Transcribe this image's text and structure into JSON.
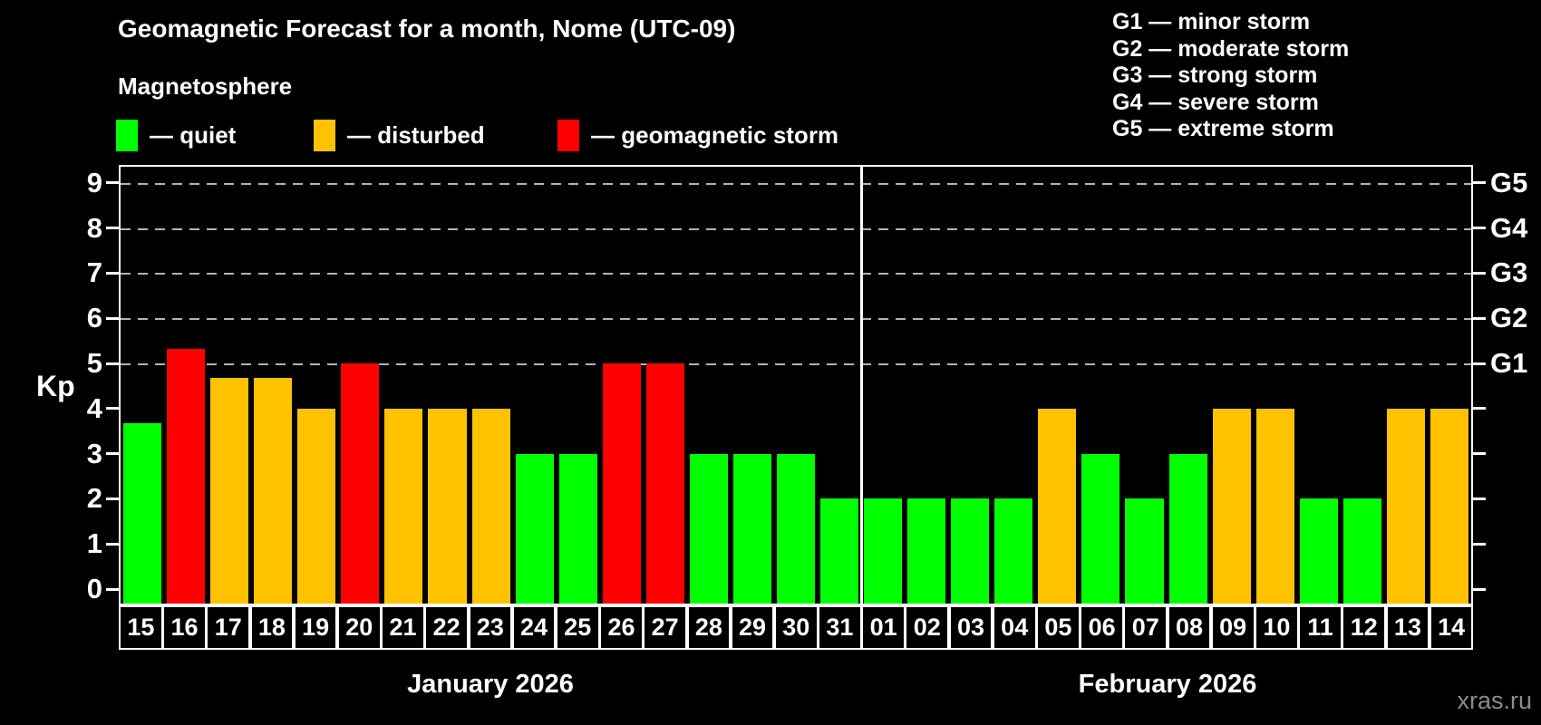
{
  "title": "Geomagnetic Forecast for a month, Nome (UTC-09)",
  "subtitle": "Magnetosphere",
  "legend": {
    "items": [
      {
        "key": "quiet",
        "label": "— quiet",
        "color": "#00ff00"
      },
      {
        "key": "disturbed",
        "label": "— disturbed",
        "color": "#ffc200"
      },
      {
        "key": "storm",
        "label": "— geomagnetic storm",
        "color": "#ff0000"
      }
    ]
  },
  "g_legend": [
    "G1 — minor storm",
    "G2 — moderate storm",
    "G3 — strong storm",
    "G4 — severe storm",
    "G5 — extreme storm"
  ],
  "watermark": "xras.ru",
  "chart_data": {
    "type": "bar",
    "ylabel": "Kp",
    "ylim": [
      -0.36,
      9.4
    ],
    "y_ticks": [
      0,
      1,
      2,
      3,
      4,
      5,
      6,
      7,
      8,
      9
    ],
    "grid_on": true,
    "g_levels": [
      {
        "kp": 5,
        "label": "G1"
      },
      {
        "kp": 6,
        "label": "G2"
      },
      {
        "kp": 7,
        "label": "G3"
      },
      {
        "kp": 8,
        "label": "G4"
      },
      {
        "kp": 9,
        "label": "G5"
      }
    ],
    "months": [
      {
        "label": "January 2026",
        "days": [
          {
            "day": "15",
            "kp": 3.67,
            "state": "quiet"
          },
          {
            "day": "16",
            "kp": 5.33,
            "state": "storm"
          },
          {
            "day": "17",
            "kp": 4.67,
            "state": "disturbed"
          },
          {
            "day": "18",
            "kp": 4.67,
            "state": "disturbed"
          },
          {
            "day": "19",
            "kp": 4,
            "state": "disturbed"
          },
          {
            "day": "20",
            "kp": 5,
            "state": "storm"
          },
          {
            "day": "21",
            "kp": 4,
            "state": "disturbed"
          },
          {
            "day": "22",
            "kp": 4,
            "state": "disturbed"
          },
          {
            "day": "23",
            "kp": 4,
            "state": "disturbed"
          },
          {
            "day": "24",
            "kp": 3,
            "state": "quiet"
          },
          {
            "day": "25",
            "kp": 3,
            "state": "quiet"
          },
          {
            "day": "26",
            "kp": 5,
            "state": "storm"
          },
          {
            "day": "27",
            "kp": 5,
            "state": "storm"
          },
          {
            "day": "28",
            "kp": 3,
            "state": "quiet"
          },
          {
            "day": "29",
            "kp": 3,
            "state": "quiet"
          },
          {
            "day": "30",
            "kp": 3,
            "state": "quiet"
          },
          {
            "day": "31",
            "kp": 2,
            "state": "quiet"
          }
        ]
      },
      {
        "label": "February 2026",
        "days": [
          {
            "day": "01",
            "kp": 2,
            "state": "quiet"
          },
          {
            "day": "02",
            "kp": 2,
            "state": "quiet"
          },
          {
            "day": "03",
            "kp": 2,
            "state": "quiet"
          },
          {
            "day": "04",
            "kp": 2,
            "state": "quiet"
          },
          {
            "day": "05",
            "kp": 4,
            "state": "disturbed"
          },
          {
            "day": "06",
            "kp": 3,
            "state": "quiet"
          },
          {
            "day": "07",
            "kp": 2,
            "state": "quiet"
          },
          {
            "day": "08",
            "kp": 3,
            "state": "quiet"
          },
          {
            "day": "09",
            "kp": 4,
            "state": "disturbed"
          },
          {
            "day": "10",
            "kp": 4,
            "state": "disturbed"
          },
          {
            "day": "11",
            "kp": 2,
            "state": "quiet"
          },
          {
            "day": "12",
            "kp": 2,
            "state": "quiet"
          },
          {
            "day": "13",
            "kp": 4,
            "state": "disturbed"
          },
          {
            "day": "14",
            "kp": 4,
            "state": "disturbed"
          }
        ]
      }
    ]
  }
}
